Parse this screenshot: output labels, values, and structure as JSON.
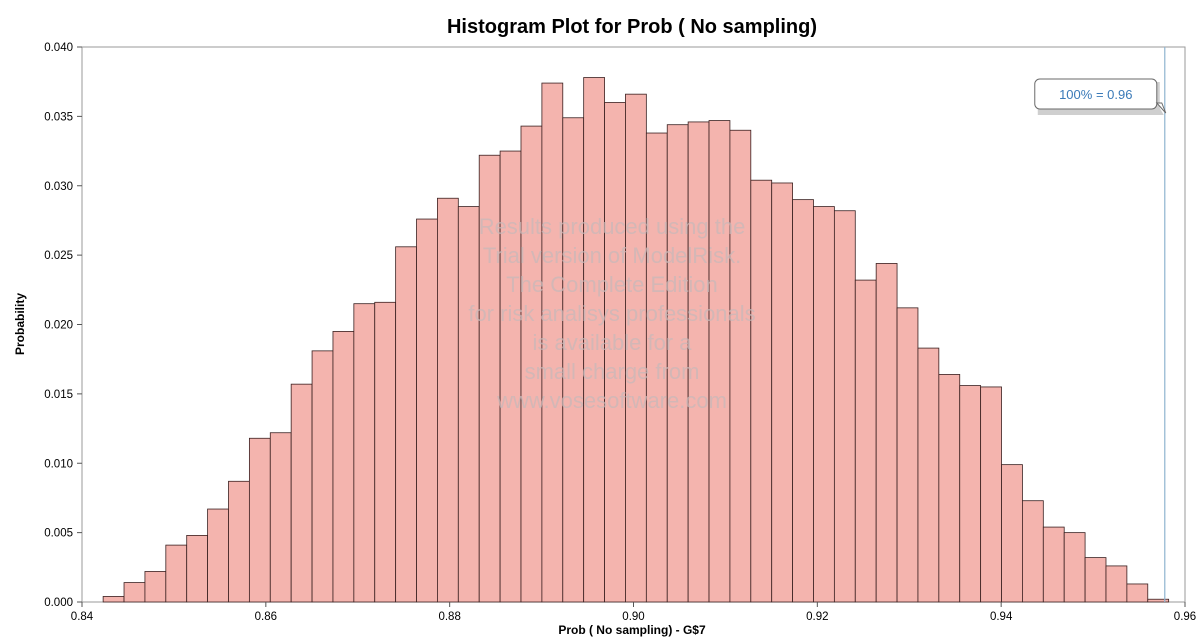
{
  "chart_data": {
    "type": "bar",
    "title": "Histogram Plot for Prob ( No sampling)",
    "xlabel": "Prob ( No sampling) - G$7",
    "ylabel": "Probability",
    "xlim": [
      0.84,
      0.96
    ],
    "ylim": [
      0,
      0.04
    ],
    "x_ticks": [
      "0.84",
      "0.86",
      "0.88",
      "0.90",
      "0.92",
      "0.94",
      "0.96"
    ],
    "y_ticks": [
      "0.000",
      "0.005",
      "0.010",
      "0.015",
      "0.020",
      "0.025",
      "0.030",
      "0.035",
      "0.040"
    ],
    "bins": {
      "start": 0.8423,
      "width": 0.002273,
      "values": [
        0.0004,
        0.0014,
        0.0022,
        0.0041,
        0.0048,
        0.0067,
        0.0087,
        0.0118,
        0.0122,
        0.0157,
        0.0181,
        0.0195,
        0.0215,
        0.0216,
        0.0256,
        0.0276,
        0.0291,
        0.0285,
        0.0322,
        0.0325,
        0.0343,
        0.0374,
        0.0349,
        0.0378,
        0.036,
        0.0366,
        0.0338,
        0.0344,
        0.0346,
        0.0347,
        0.034,
        0.0304,
        0.0302,
        0.029,
        0.0285,
        0.0282,
        0.0232,
        0.0244,
        0.0212,
        0.0183,
        0.0164,
        0.0156,
        0.0155,
        0.0099,
        0.0073,
        0.0054,
        0.005,
        0.0032,
        0.0026,
        0.0013,
        0.0002
      ]
    },
    "marker": {
      "x": 0.9578,
      "label": "100% = 0.96"
    },
    "watermark_lines": [
      "Results produced using the",
      "Trial version of  ModelRisk.",
      "The Complete Edition",
      "for risk analisys professionals",
      "is available for a",
      "small charge from",
      "www.vosesoftware.com"
    ],
    "grid": false,
    "legend": "none"
  },
  "colors": {
    "bar_fill": "#f4b4ae",
    "bar_stroke": "#3a2020",
    "marker_line": "#8fb4d0",
    "callout_text": "#3a7ab8"
  }
}
